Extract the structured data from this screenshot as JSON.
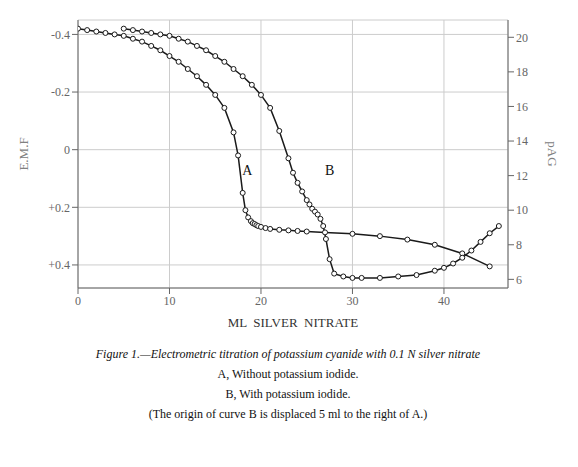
{
  "chart_data": {
    "type": "line",
    "title": "Figure 1.—Electrometric titration of potassium cyanide with 0.1 N silver nitrate",
    "subtitle": [
      "A, Without potassium iodide.",
      "B, With potassium iodide.",
      "(The origin of curve B is displaced 5 ml to the right of A.)"
    ],
    "xlabel": "ML  SILVER  NITRATE",
    "ylabel": "E.M.F",
    "y2label": "pAG",
    "xlim": [
      0,
      47
    ],
    "xticks": [
      0,
      10,
      20,
      30,
      40
    ],
    "ylim": [
      0.48,
      -0.45
    ],
    "yticks": [
      -0.4,
      -0.2,
      0,
      {
        "value": 0.2,
        "label": "+0.2"
      },
      {
        "value": 0.4,
        "label": "+0.4"
      }
    ],
    "y2lim": [
      5.5,
      21
    ],
    "y2ticks": [
      6,
      8,
      10,
      12,
      14,
      16,
      18,
      20
    ],
    "grid": true,
    "series": [
      {
        "x": [
          0,
          1,
          2,
          3,
          4,
          5,
          6,
          7,
          8,
          9,
          10,
          11,
          12,
          13,
          14,
          15,
          16,
          17,
          17.5,
          18,
          18.3,
          18.6,
          18.9,
          19.1,
          19.3,
          19.5,
          19.7,
          20.0,
          20.5,
          21,
          22,
          23,
          24,
          25,
          27,
          30,
          33,
          36,
          39,
          42,
          45
        ],
        "values": [
          -0.42,
          -0.415,
          -0.41,
          -0.405,
          -0.4,
          -0.395,
          -0.385,
          -0.375,
          -0.36,
          -0.345,
          -0.325,
          -0.305,
          -0.28,
          -0.255,
          -0.225,
          -0.19,
          -0.145,
          -0.06,
          0.02,
          0.15,
          0.21,
          0.235,
          0.248,
          0.255,
          0.258,
          0.262,
          0.265,
          0.268,
          0.272,
          0.275,
          0.278,
          0.28,
          0.282,
          0.284,
          0.287,
          0.292,
          0.3,
          0.312,
          0.33,
          0.36,
          0.405
        ],
        "color": "#1a1a1a",
        "marker": "o"
      },
      {
        "x": [
          5,
          6,
          7,
          8,
          9,
          10,
          11,
          12,
          13,
          14,
          15,
          16,
          17,
          18,
          19,
          20,
          21,
          22,
          23,
          23.5,
          24,
          24.5,
          25,
          25.3,
          25.6,
          25.9,
          26.2,
          26.5,
          26.8,
          27.1,
          27.5,
          28.0,
          29,
          30,
          31,
          33,
          35,
          37,
          39,
          40,
          41,
          42,
          43,
          44,
          45,
          46
        ],
        "values": [
          -0.42,
          -0.415,
          -0.41,
          -0.405,
          -0.4,
          -0.395,
          -0.385,
          -0.375,
          -0.36,
          -0.345,
          -0.325,
          -0.305,
          -0.28,
          -0.255,
          -0.225,
          -0.19,
          -0.145,
          -0.065,
          0.03,
          0.08,
          0.115,
          0.145,
          0.175,
          0.19,
          0.205,
          0.215,
          0.225,
          0.24,
          0.265,
          0.31,
          0.38,
          0.43,
          0.44,
          0.445,
          0.445,
          0.445,
          0.44,
          0.435,
          0.42,
          0.41,
          0.395,
          0.375,
          0.35,
          0.32,
          0.29,
          0.265
        ],
        "color": "#1a1a1a",
        "marker": "o"
      }
    ],
    "annotations": [
      {
        "text": "A",
        "x": 18.5,
        "y": 0.07
      },
      {
        "text": "B",
        "x": 27.5,
        "y": 0.07
      }
    ]
  }
}
